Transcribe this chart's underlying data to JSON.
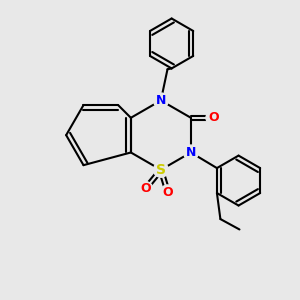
{
  "bg_color": "#e8e8e8",
  "bond_color": "#000000",
  "N_color": "#0000ff",
  "O_color": "#ff0000",
  "S_color": "#cccc00",
  "line_width": 1.5,
  "dbo": 0.025,
  "xlim": [
    -1.6,
    1.6
  ],
  "ylim": [
    -1.9,
    1.7
  ]
}
